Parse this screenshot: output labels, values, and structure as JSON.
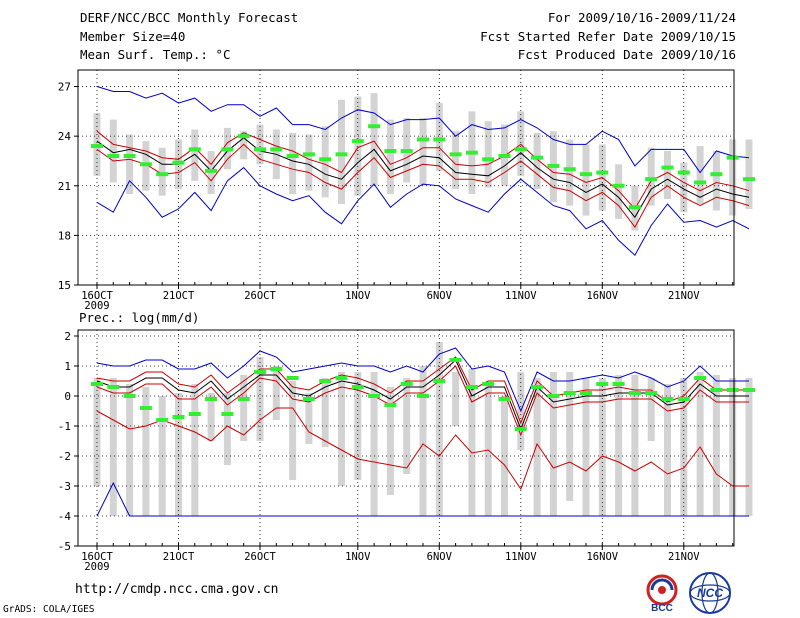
{
  "header": {
    "title": "DERF/NCC/BCC Monthly Forecast",
    "member_size": "Member Size=40",
    "variable": "Mean Surf. Temp.: °C",
    "period": "For 2009/10/16-2009/11/24",
    "start_date": "Fcst Started Refer Date 2009/10/15",
    "produced_date": "Fcst Produced Date 2009/10/16"
  },
  "footer": {
    "url": "http://cmdp.ncc.cma.gov.cn",
    "grads": "GrADS: COLA/IGES",
    "logo_bcc": "BCC",
    "logo_ncc": "NCC"
  },
  "colors": {
    "bar": "#d3d3d3",
    "mean_bar": "#33ee33",
    "envelope": "#0000cc",
    "spread": "#cc0000",
    "ensemble": "#000000",
    "grid": "#000000"
  },
  "chart_data": [
    {
      "type": "line",
      "title": "Mean Surf. Temp.: °C",
      "ylim": [
        15,
        28
      ],
      "yticks": [
        15,
        18,
        21,
        24,
        27
      ],
      "x_ticks": [
        {
          "day": 0,
          "label": "16OCT"
        },
        {
          "day": 5,
          "label": "21OCT"
        },
        {
          "day": 10,
          "label": "26OCT"
        },
        {
          "day": 16,
          "label": "1NOV"
        },
        {
          "day": 21,
          "label": "6NOV"
        },
        {
          "day": 26,
          "label": "11NOV"
        },
        {
          "day": 31,
          "label": "16NOV"
        },
        {
          "day": 36,
          "label": "21NOV"
        }
      ],
      "x_year_label": "2009",
      "bar_low": [
        21.6,
        21.2,
        20.5,
        20.7,
        20.4,
        20.8,
        21.3,
        20.5,
        22.0,
        22.6,
        22.3,
        21.4,
        20.5,
        20.7,
        20.3,
        19.9,
        20.4,
        21.0,
        20.5,
        21.2,
        21.0,
        21.9,
        20.8,
        20.5,
        20.9,
        21.0,
        21.6,
        20.8,
        20.0,
        19.8,
        19.2,
        19.5,
        19.0,
        18.3,
        19.8,
        20.2,
        19.4,
        19.9,
        19.5,
        19.2,
        19.6
      ],
      "bar_high": [
        25.4,
        25.0,
        24.1,
        23.7,
        23.3,
        23.8,
        24.4,
        23.1,
        24.5,
        24.3,
        24.7,
        24.4,
        24.2,
        24.1,
        24.6,
        26.2,
        26.4,
        26.6,
        25.0,
        25.1,
        25.1,
        26.0,
        24.3,
        25.5,
        24.9,
        24.7,
        25.5,
        24.2,
        24.3,
        23.8,
        23.5,
        23.5,
        22.3,
        21.0,
        23.3,
        23.1,
        22.4,
        23.4,
        23.1,
        23.8,
        23.8
      ],
      "bar_mean": [
        23.4,
        22.8,
        22.8,
        22.3,
        21.7,
        22.4,
        23.2,
        21.9,
        23.2,
        24.0,
        23.2,
        23.2,
        22.8,
        22.9,
        22.6,
        22.9,
        23.7,
        24.6,
        23.1,
        23.1,
        23.8,
        23.8,
        22.9,
        23.0,
        22.6,
        22.8,
        23.2,
        22.7,
        22.2,
        22.0,
        21.7,
        21.8,
        21.0,
        19.7,
        21.4,
        22.1,
        21.8,
        21.2,
        21.7,
        22.7,
        21.4
      ],
      "series": [
        {
          "name": "ensemble_max",
          "color": "#0000cc",
          "values": [
            27.0,
            26.7,
            26.7,
            26.3,
            26.6,
            26.0,
            26.3,
            25.5,
            25.9,
            25.9,
            25.2,
            25.7,
            24.7,
            24.7,
            24.4,
            25.1,
            25.6,
            25.4,
            24.7,
            25.0,
            25.0,
            25.1,
            24.0,
            24.7,
            24.4,
            24.5,
            25.0,
            24.5,
            23.8,
            23.5,
            23.5,
            24.3,
            23.8,
            22.2,
            23.2,
            23.2,
            23.2,
            21.8,
            23.1,
            22.8,
            22.7
          ]
        },
        {
          "name": "upper_spread",
          "color": "#cc0000",
          "values": [
            24.3,
            23.5,
            23.3,
            23.1,
            22.7,
            22.6,
            23.3,
            22.3,
            23.6,
            24.2,
            23.8,
            23.4,
            23.1,
            22.6,
            22.3,
            21.8,
            23.3,
            23.7,
            22.3,
            22.7,
            23.3,
            23.3,
            22.3,
            22.2,
            22.3,
            22.8,
            23.5,
            22.6,
            21.8,
            21.7,
            21.2,
            21.5,
            20.7,
            19.6,
            21.3,
            21.8,
            21.2,
            20.7,
            21.2,
            21.0,
            20.7
          ]
        },
        {
          "name": "ensemble_mean",
          "color": "#000000",
          "values": [
            23.7,
            23.0,
            23.2,
            22.9,
            22.3,
            22.3,
            22.9,
            21.9,
            23.1,
            23.9,
            23.1,
            22.9,
            22.5,
            22.3,
            21.7,
            21.4,
            22.4,
            23.2,
            21.9,
            22.3,
            22.8,
            22.7,
            21.8,
            21.7,
            21.6,
            22.2,
            23.0,
            22.1,
            21.4,
            21.2,
            20.6,
            21.1,
            20.3,
            19.1,
            20.8,
            21.4,
            20.8,
            20.3,
            20.8,
            20.5,
            20.3
          ]
        },
        {
          "name": "lower_spread",
          "color": "#cc0000",
          "values": [
            23.2,
            22.5,
            22.6,
            22.3,
            21.7,
            21.8,
            22.4,
            21.3,
            22.6,
            23.5,
            22.6,
            22.3,
            22.0,
            21.8,
            21.2,
            20.8,
            21.8,
            22.7,
            21.5,
            21.9,
            22.3,
            22.2,
            21.4,
            21.4,
            21.2,
            21.8,
            22.5,
            21.7,
            20.9,
            20.7,
            20.1,
            20.6,
            19.8,
            18.5,
            20.3,
            21.0,
            20.3,
            19.8,
            20.3,
            20.1,
            19.8
          ]
        },
        {
          "name": "ensemble_min",
          "color": "#0000cc",
          "values": [
            20.0,
            19.4,
            21.3,
            20.3,
            19.1,
            19.6,
            20.6,
            19.5,
            21.3,
            22.1,
            21.0,
            20.5,
            20.1,
            20.4,
            19.4,
            18.7,
            20.1,
            21.1,
            19.7,
            20.5,
            21.1,
            21.0,
            20.2,
            19.8,
            19.4,
            20.5,
            21.4,
            20.6,
            19.8,
            19.5,
            18.4,
            18.9,
            17.7,
            16.8,
            18.6,
            19.9,
            18.8,
            18.9,
            18.5,
            18.9,
            18.4
          ]
        }
      ]
    },
    {
      "type": "line",
      "title": "Prec.: log(mm/d)",
      "ylim": [
        -5,
        2.2
      ],
      "yticks": [
        -5,
        -4,
        -3,
        -2,
        -1,
        0,
        1,
        2
      ],
      "x_ticks": [
        {
          "day": 0,
          "label": "16OCT"
        },
        {
          "day": 5,
          "label": "21OCT"
        },
        {
          "day": 10,
          "label": "26OCT"
        },
        {
          "day": 16,
          "label": "1NOV"
        },
        {
          "day": 21,
          "label": "6NOV"
        },
        {
          "day": 26,
          "label": "11NOV"
        },
        {
          "day": 31,
          "label": "16NOV"
        },
        {
          "day": 36,
          "label": "21NOV"
        }
      ],
      "x_year_label": "2009",
      "bar_low": [
        -3.0,
        -4.0,
        -4.0,
        -4.0,
        -4.0,
        -4.0,
        -4.0,
        -1.5,
        -2.3,
        -1.5,
        -1.5,
        -0.8,
        -2.8,
        -1.6,
        -1.7,
        -3.0,
        -2.8,
        -4.0,
        -3.3,
        -2.6,
        -4.0,
        -4.0,
        -1.0,
        -4.0,
        -4.0,
        -4.0,
        -1.8,
        -4.0,
        -4.0,
        -3.5,
        -4.0,
        -4.0,
        -4.0,
        -4.0,
        -1.5,
        -4.0,
        -4.0,
        -4.0,
        -4.0,
        -4.0,
        -4.0
      ],
      "bar_high": [
        0.6,
        0.6,
        0.4,
        0.3,
        0.0,
        0.1,
        0.4,
        0.1,
        0.1,
        0.7,
        1.3,
        1.0,
        0.5,
        0.1,
        0.6,
        0.8,
        0.8,
        0.8,
        0.3,
        0.6,
        1.0,
        1.8,
        0.8,
        0.9,
        0.4,
        0.0,
        0.8,
        0.6,
        0.8,
        0.8,
        0.6,
        0.6,
        0.7,
        0.7,
        0.6,
        0.4,
        0.6,
        0.8,
        0.7,
        0.6,
        0.6
      ],
      "bar_mean": [
        0.4,
        0.3,
        0.0,
        -0.4,
        -0.8,
        -0.7,
        -0.6,
        -0.1,
        -0.6,
        -0.1,
        0.8,
        0.9,
        0.6,
        -0.1,
        0.5,
        0.6,
        0.3,
        0.0,
        -0.3,
        0.4,
        0.0,
        0.5,
        1.2,
        0.3,
        0.4,
        -0.1,
        -1.1,
        0.3,
        0.0,
        0.1,
        0.1,
        0.4,
        0.4,
        0.1,
        0.1,
        -0.1,
        -0.1,
        0.6,
        0.2,
        0.2,
        0.2
      ],
      "series": [
        {
          "name": "ensemble_max",
          "color": "#0000cc",
          "values": [
            1.1,
            1.0,
            1.0,
            1.2,
            1.2,
            0.9,
            0.9,
            1.1,
            0.6,
            1.0,
            1.5,
            1.3,
            0.8,
            0.9,
            1.0,
            1.1,
            1.0,
            1.0,
            0.8,
            1.0,
            0.8,
            1.4,
            1.6,
            0.9,
            1.0,
            0.8,
            -0.5,
            0.8,
            0.5,
            0.5,
            0.6,
            0.7,
            0.6,
            0.8,
            0.6,
            0.3,
            0.5,
            1.0,
            0.5,
            0.5,
            0.5
          ]
        },
        {
          "name": "upper_spread",
          "color": "#cc0000",
          "values": [
            0.6,
            0.5,
            0.5,
            0.8,
            0.8,
            0.4,
            0.3,
            0.7,
            0.1,
            0.5,
            0.9,
            0.9,
            0.3,
            0.2,
            0.5,
            0.7,
            0.6,
            0.4,
            0.1,
            0.5,
            0.5,
            0.9,
            1.3,
            0.2,
            0.5,
            0.5,
            -0.9,
            0.5,
            0.0,
            0.1,
            0.2,
            0.2,
            0.3,
            0.2,
            0.2,
            -0.2,
            0.0,
            0.6,
            0.2,
            0.2,
            0.2
          ]
        },
        {
          "name": "ensemble_mean",
          "color": "#000000",
          "values": [
            0.5,
            0.3,
            0.3,
            0.6,
            0.6,
            0.2,
            0.1,
            0.5,
            -0.1,
            0.3,
            0.7,
            0.7,
            0.1,
            0.0,
            0.3,
            0.5,
            0.4,
            0.2,
            -0.1,
            0.3,
            0.3,
            0.7,
            1.2,
            0.0,
            0.3,
            0.3,
            -1.1,
            0.3,
            -0.2,
            -0.1,
            0.0,
            0.0,
            0.1,
            0.1,
            0.1,
            -0.3,
            -0.2,
            0.4,
            0.0,
            0.0,
            0.0
          ]
        },
        {
          "name": "lower_spread",
          "color": "#cc0000",
          "values": [
            0.3,
            0.1,
            0.1,
            0.4,
            0.4,
            -0.1,
            -0.1,
            0.3,
            -0.3,
            0.1,
            0.6,
            0.5,
            -0.1,
            -0.2,
            0.1,
            0.3,
            0.2,
            0.0,
            -0.3,
            0.1,
            0.1,
            0.5,
            1.0,
            -0.2,
            0.1,
            0.1,
            -1.3,
            0.1,
            -0.4,
            -0.3,
            -0.2,
            -0.2,
            -0.1,
            -0.1,
            -0.1,
            -0.5,
            -0.4,
            0.2,
            -0.2,
            -0.2,
            -0.2
          ]
        },
        {
          "name": "spread_min",
          "color": "#cc0000",
          "values": [
            -0.5,
            -0.8,
            -1.1,
            -1.0,
            -0.8,
            -1.0,
            -1.2,
            -1.5,
            -1.0,
            -1.3,
            -0.8,
            -0.4,
            -0.4,
            -1.2,
            -1.5,
            -1.8,
            -2.1,
            -2.2,
            -2.3,
            -2.4,
            -1.6,
            -2.0,
            -1.3,
            -1.9,
            -1.8,
            -2.3,
            -3.1,
            -1.6,
            -2.4,
            -2.2,
            -2.5,
            -2.0,
            -2.2,
            -2.5,
            -2.2,
            -2.6,
            -2.4,
            -1.7,
            -2.6,
            -3.0,
            -3.0
          ]
        },
        {
          "name": "ensemble_min",
          "color": "#0000cc",
          "values": [
            -4.0,
            -2.9,
            -4.0,
            -4.0,
            -4.0,
            -4.0,
            -4.0,
            -4.0,
            -4.0,
            -4.0,
            -4.0,
            -4.0,
            -4.0,
            -4.0,
            -4.0,
            -4.0,
            -4.0,
            -4.0,
            -4.0,
            -4.0,
            -4.0,
            -4.0,
            -4.0,
            -4.0,
            -4.0,
            -4.0,
            -4.0,
            -4.0,
            -4.0,
            -4.0,
            -4.0,
            -4.0,
            -4.0,
            -4.0,
            -4.0,
            -4.0,
            -4.0,
            -4.0,
            -4.0,
            -4.0,
            -4.0
          ]
        }
      ]
    }
  ]
}
